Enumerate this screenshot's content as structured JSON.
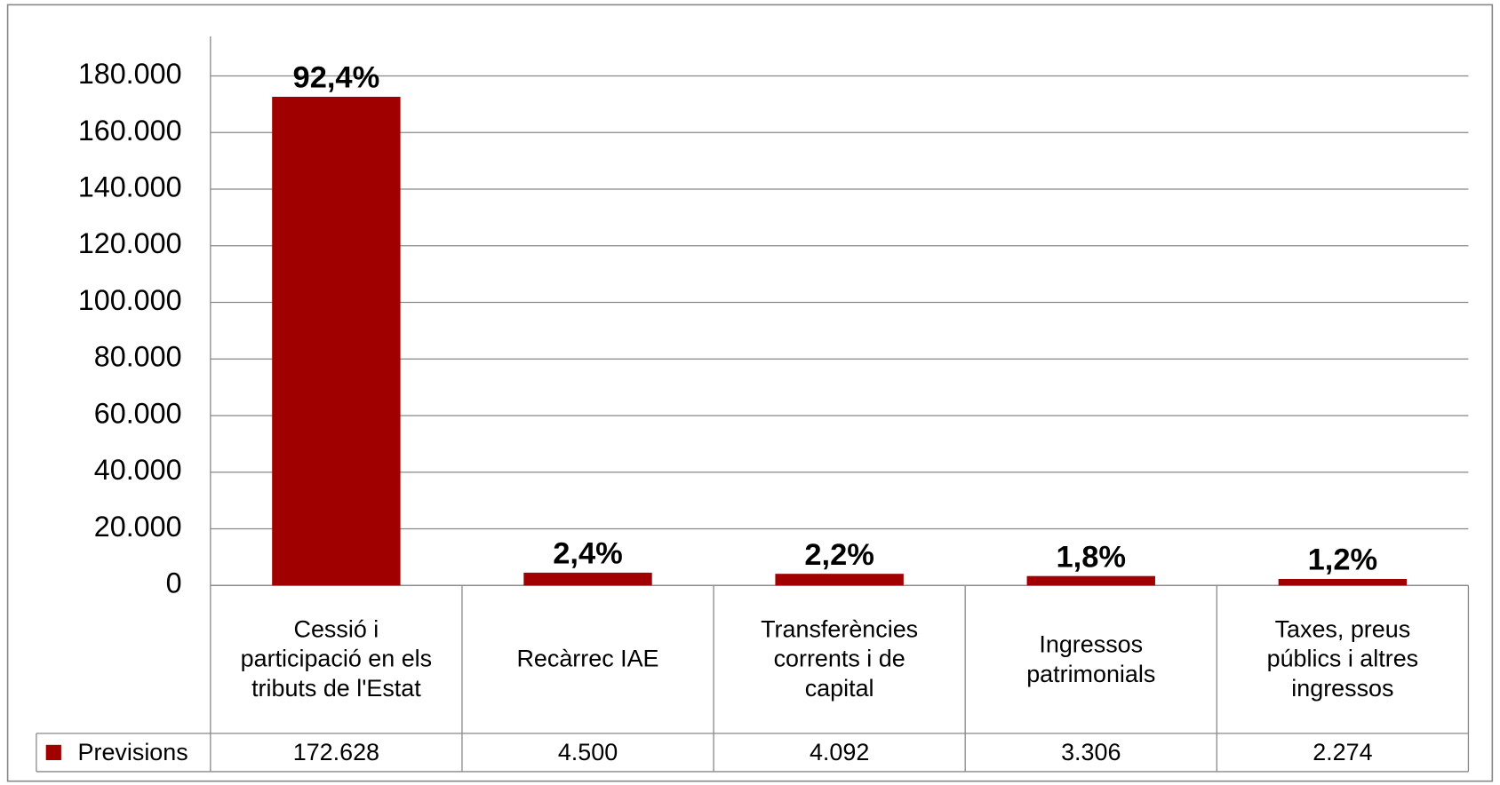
{
  "chart_data": {
    "type": "bar",
    "categories": [
      "Cessió i participació en els tributs de l'Estat",
      "Recàrrec IAE",
      "Transferències corrents i de capital",
      "Ingressos patrimonials",
      "Taxes, preus públics i altres ingressos"
    ],
    "series": [
      {
        "name": "Previsions",
        "color": "#a00000",
        "values": [
          172628,
          4500,
          4092,
          3306,
          2274
        ],
        "value_labels": [
          "172.628",
          "4.500",
          "4.092",
          "3.306",
          "2.274"
        ]
      }
    ],
    "shares": {
      "values": [
        92.4,
        2.4,
        2.2,
        1.8,
        1.2
      ],
      "value_labels": [
        "92,4%",
        "2,4%",
        "2,2%",
        "1,8%",
        "1,2%"
      ]
    },
    "ylim": [
      0,
      194000
    ],
    "yticks": [
      0,
      {
        "value": 20000,
        "label": "20.000"
      },
      {
        "value": 40000,
        "label": "40.000"
      },
      {
        "value": 60000,
        "label": "60.000"
      },
      {
        "value": 80000,
        "label": "80.000"
      },
      {
        "value": 100000,
        "label": "100.000"
      },
      {
        "value": 120000,
        "label": "120.000"
      },
      {
        "value": 140000,
        "label": "140.000"
      },
      {
        "value": 160000,
        "label": "160.000"
      },
      {
        "value": 180000,
        "label": "180.000"
      }
    ],
    "grid": true,
    "data_table": true
  }
}
